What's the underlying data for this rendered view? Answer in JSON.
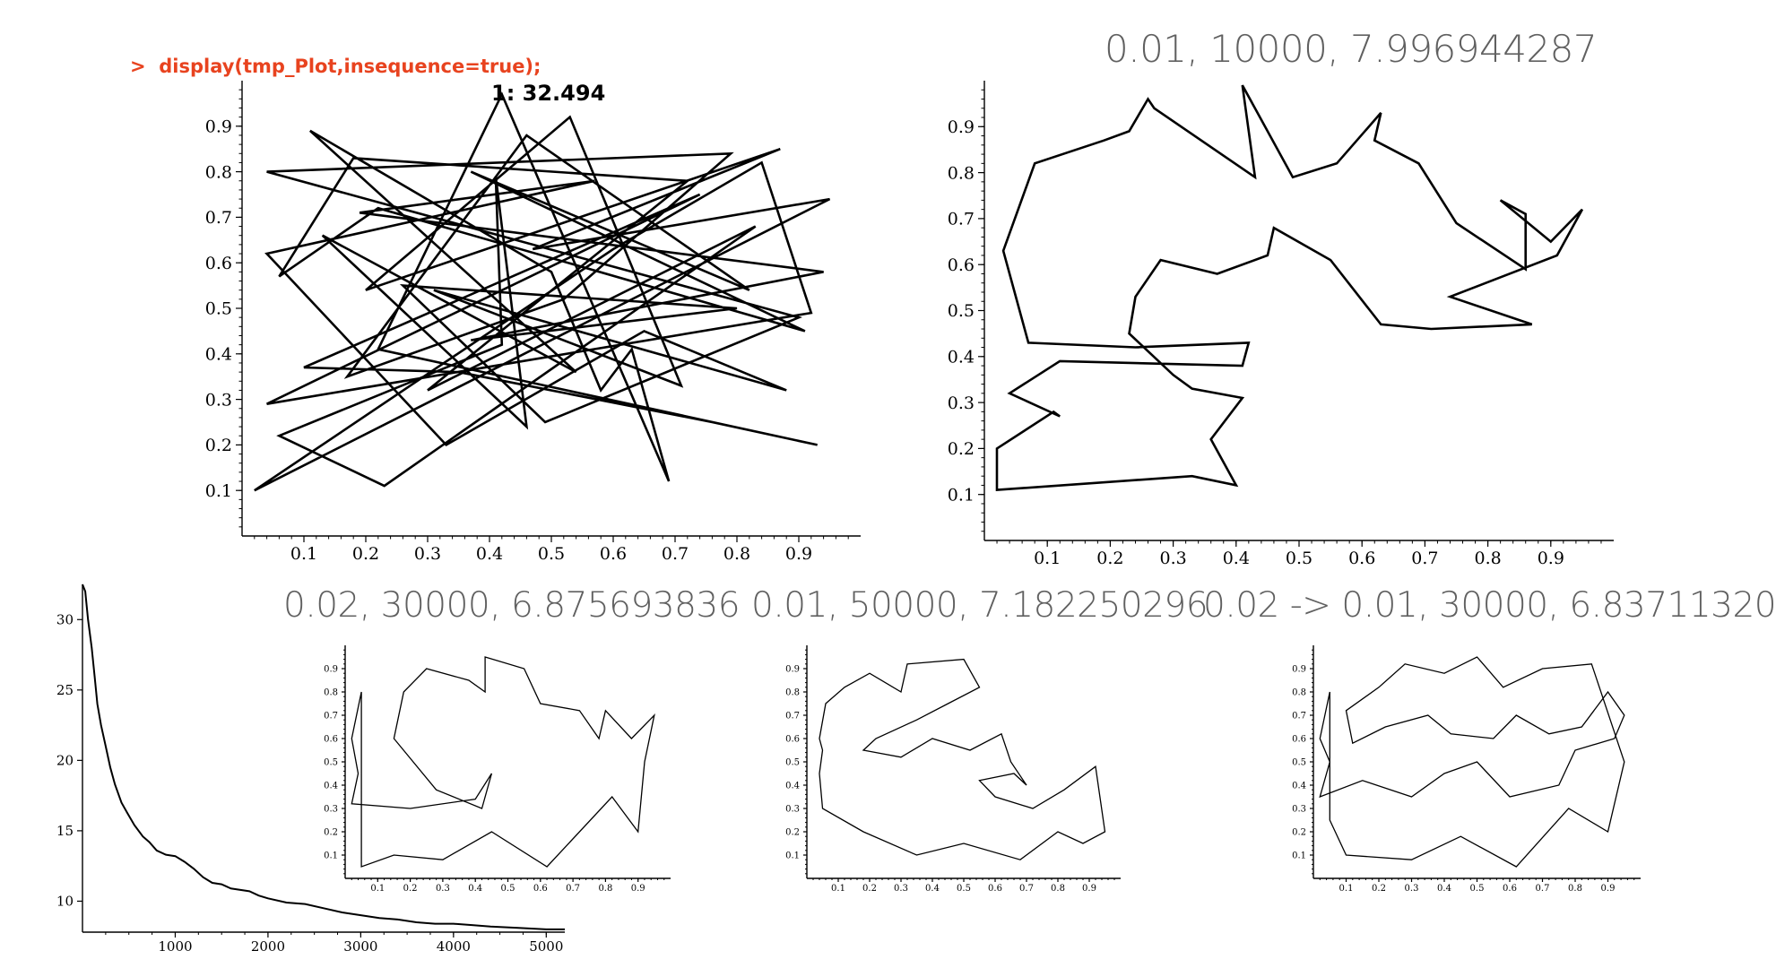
{
  "command_prompt": ">",
  "command_text": "display(tmp_Plot,insequence=true);",
  "colors": {
    "command": "#e8431f",
    "caption": "#606060",
    "line": "#000000"
  },
  "captions": {
    "main": "0.01, 10000, 7.996944287",
    "small1": "0.02, 30000, 6.875693836",
    "small2": "0.01, 50000, 7.182250296",
    "small3": "0.02 -> 0.01, 30000, 6.83711320"
  },
  "chart_data": [
    {
      "id": "random-tour",
      "type": "line",
      "title": "1: 32.494",
      "xlim": [
        0,
        1
      ],
      "ylim": [
        0,
        1
      ],
      "xticks": [
        0.1,
        0.2,
        0.3,
        0.4,
        0.5,
        0.6,
        0.7,
        0.8,
        0.9
      ],
      "yticks": [
        0.1,
        0.2,
        0.3,
        0.4,
        0.5,
        0.6,
        0.7,
        0.8,
        0.9
      ],
      "points": [
        [
          0.04,
          0.8
        ],
        [
          0.79,
          0.84
        ],
        [
          0.52,
          0.52
        ],
        [
          0.17,
          0.35
        ],
        [
          0.46,
          0.88
        ],
        [
          0.82,
          0.54
        ],
        [
          0.37,
          0.8
        ],
        [
          0.91,
          0.45
        ],
        [
          0.22,
          0.72
        ],
        [
          0.06,
          0.57
        ],
        [
          0.18,
          0.83
        ],
        [
          0.72,
          0.78
        ],
        [
          0.3,
          0.32
        ],
        [
          0.83,
          0.68
        ],
        [
          0.23,
          0.11
        ],
        [
          0.06,
          0.22
        ],
        [
          0.42,
          0.42
        ],
        [
          0.41,
          0.79
        ],
        [
          0.46,
          0.24
        ],
        [
          0.13,
          0.66
        ],
        [
          0.54,
          0.36
        ],
        [
          0.11,
          0.89
        ],
        [
          0.5,
          0.58
        ],
        [
          0.58,
          0.32
        ],
        [
          0.63,
          0.41
        ],
        [
          0.69,
          0.12
        ],
        [
          0.42,
          0.97
        ],
        [
          0.22,
          0.41
        ],
        [
          0.93,
          0.2
        ],
        [
          0.76,
          0.25
        ],
        [
          0.35,
          0.36
        ],
        [
          0.1,
          0.37
        ],
        [
          0.74,
          0.75
        ],
        [
          0.04,
          0.29
        ],
        [
          0.92,
          0.49
        ],
        [
          0.84,
          0.82
        ],
        [
          0.6,
          0.63
        ],
        [
          0.02,
          0.1
        ],
        [
          0.95,
          0.74
        ],
        [
          0.47,
          0.63
        ],
        [
          0.87,
          0.85
        ],
        [
          0.2,
          0.54
        ],
        [
          0.53,
          0.92
        ],
        [
          0.71,
          0.33
        ],
        [
          0.31,
          0.54
        ],
        [
          0.88,
          0.32
        ],
        [
          0.65,
          0.45
        ],
        [
          0.33,
          0.2
        ],
        [
          0.04,
          0.62
        ],
        [
          0.57,
          0.78
        ],
        [
          0.19,
          0.71
        ],
        [
          0.94,
          0.58
        ],
        [
          0.37,
          0.43
        ],
        [
          0.8,
          0.5
        ],
        [
          0.26,
          0.55
        ],
        [
          0.49,
          0.25
        ],
        [
          0.9,
          0.48
        ]
      ]
    },
    {
      "id": "annealed-tour",
      "type": "line",
      "title": "",
      "xlim": [
        0,
        1
      ],
      "ylim": [
        0,
        1
      ],
      "xticks": [
        0.1,
        0.2,
        0.3,
        0.4,
        0.5,
        0.6,
        0.7,
        0.8,
        0.9
      ],
      "yticks": [
        0.1,
        0.2,
        0.3,
        0.4,
        0.5,
        0.6,
        0.7,
        0.8,
        0.9
      ],
      "points": [
        [
          0.12,
          0.27
        ],
        [
          0.04,
          0.32
        ],
        [
          0.12,
          0.39
        ],
        [
          0.41,
          0.38
        ],
        [
          0.42,
          0.43
        ],
        [
          0.24,
          0.42
        ],
        [
          0.07,
          0.43
        ],
        [
          0.05,
          0.53
        ],
        [
          0.03,
          0.63
        ],
        [
          0.08,
          0.82
        ],
        [
          0.19,
          0.87
        ],
        [
          0.23,
          0.89
        ],
        [
          0.26,
          0.96
        ],
        [
          0.27,
          0.94
        ],
        [
          0.43,
          0.79
        ],
        [
          0.41,
          0.99
        ],
        [
          0.49,
          0.79
        ],
        [
          0.56,
          0.82
        ],
        [
          0.63,
          0.93
        ],
        [
          0.62,
          0.87
        ],
        [
          0.69,
          0.82
        ],
        [
          0.75,
          0.69
        ],
        [
          0.86,
          0.59
        ],
        [
          0.86,
          0.71
        ],
        [
          0.82,
          0.74
        ],
        [
          0.9,
          0.65
        ],
        [
          0.95,
          0.72
        ],
        [
          0.91,
          0.62
        ],
        [
          0.74,
          0.53
        ],
        [
          0.87,
          0.47
        ],
        [
          0.71,
          0.46
        ],
        [
          0.63,
          0.47
        ],
        [
          0.55,
          0.61
        ],
        [
          0.46,
          0.68
        ],
        [
          0.45,
          0.62
        ],
        [
          0.37,
          0.58
        ],
        [
          0.28,
          0.61
        ],
        [
          0.24,
          0.53
        ],
        [
          0.23,
          0.45
        ],
        [
          0.3,
          0.36
        ],
        [
          0.33,
          0.33
        ],
        [
          0.41,
          0.31
        ],
        [
          0.36,
          0.22
        ],
        [
          0.4,
          0.12
        ],
        [
          0.33,
          0.14
        ],
        [
          0.02,
          0.11
        ],
        [
          0.02,
          0.2
        ],
        [
          0.11,
          0.28
        ]
      ]
    },
    {
      "id": "tour-030000",
      "type": "line",
      "title": "",
      "xlim": [
        0,
        1
      ],
      "ylim": [
        0,
        1
      ],
      "xticks": [
        0.1,
        0.2,
        0.3,
        0.4,
        0.5,
        0.6,
        0.7,
        0.8,
        0.9
      ],
      "yticks": [
        0.1,
        0.2,
        0.3,
        0.4,
        0.5,
        0.6,
        0.7,
        0.8,
        0.9
      ],
      "points": [
        [
          0.05,
          0.8
        ],
        [
          0.02,
          0.6
        ],
        [
          0.04,
          0.45
        ],
        [
          0.02,
          0.32
        ],
        [
          0.2,
          0.3
        ],
        [
          0.4,
          0.34
        ],
        [
          0.45,
          0.45
        ],
        [
          0.42,
          0.3
        ],
        [
          0.28,
          0.38
        ],
        [
          0.15,
          0.6
        ],
        [
          0.18,
          0.8
        ],
        [
          0.25,
          0.9
        ],
        [
          0.38,
          0.85
        ],
        [
          0.43,
          0.8
        ],
        [
          0.43,
          0.95
        ],
        [
          0.55,
          0.9
        ],
        [
          0.6,
          0.75
        ],
        [
          0.72,
          0.72
        ],
        [
          0.78,
          0.6
        ],
        [
          0.8,
          0.72
        ],
        [
          0.88,
          0.6
        ],
        [
          0.95,
          0.7
        ],
        [
          0.92,
          0.5
        ],
        [
          0.9,
          0.2
        ],
        [
          0.82,
          0.35
        ],
        [
          0.62,
          0.05
        ],
        [
          0.45,
          0.2
        ],
        [
          0.3,
          0.08
        ],
        [
          0.15,
          0.1
        ],
        [
          0.05,
          0.05
        ]
      ]
    },
    {
      "id": "tour-050000",
      "type": "line",
      "title": "",
      "xlim": [
        0,
        1
      ],
      "ylim": [
        0,
        1
      ],
      "xticks": [
        0.1,
        0.2,
        0.3,
        0.4,
        0.5,
        0.6,
        0.7,
        0.8,
        0.9
      ],
      "yticks": [
        0.1,
        0.2,
        0.3,
        0.4,
        0.5,
        0.6,
        0.7,
        0.8,
        0.9
      ],
      "points": [
        [
          0.05,
          0.55
        ],
        [
          0.04,
          0.6
        ],
        [
          0.06,
          0.75
        ],
        [
          0.12,
          0.82
        ],
        [
          0.2,
          0.88
        ],
        [
          0.3,
          0.8
        ],
        [
          0.32,
          0.92
        ],
        [
          0.5,
          0.94
        ],
        [
          0.55,
          0.82
        ],
        [
          0.45,
          0.75
        ],
        [
          0.35,
          0.68
        ],
        [
          0.22,
          0.6
        ],
        [
          0.18,
          0.55
        ],
        [
          0.3,
          0.52
        ],
        [
          0.4,
          0.6
        ],
        [
          0.52,
          0.55
        ],
        [
          0.62,
          0.62
        ],
        [
          0.65,
          0.5
        ],
        [
          0.7,
          0.4
        ],
        [
          0.66,
          0.45
        ],
        [
          0.55,
          0.42
        ],
        [
          0.6,
          0.35
        ],
        [
          0.72,
          0.3
        ],
        [
          0.82,
          0.38
        ],
        [
          0.92,
          0.48
        ],
        [
          0.95,
          0.2
        ],
        [
          0.88,
          0.15
        ],
        [
          0.8,
          0.2
        ],
        [
          0.68,
          0.08
        ],
        [
          0.5,
          0.15
        ],
        [
          0.35,
          0.1
        ],
        [
          0.18,
          0.2
        ],
        [
          0.05,
          0.3
        ],
        [
          0.04,
          0.45
        ]
      ]
    },
    {
      "id": "tour-schedule",
      "type": "line",
      "title": "",
      "xlim": [
        0,
        1
      ],
      "ylim": [
        0,
        1
      ],
      "xticks": [
        0.1,
        0.2,
        0.3,
        0.4,
        0.5,
        0.6,
        0.7,
        0.8,
        0.9
      ],
      "yticks": [
        0.1,
        0.2,
        0.3,
        0.4,
        0.5,
        0.6,
        0.7,
        0.8,
        0.9
      ],
      "points": [
        [
          0.05,
          0.8
        ],
        [
          0.02,
          0.6
        ],
        [
          0.05,
          0.5
        ],
        [
          0.02,
          0.35
        ],
        [
          0.15,
          0.42
        ],
        [
          0.3,
          0.35
        ],
        [
          0.4,
          0.45
        ],
        [
          0.5,
          0.5
        ],
        [
          0.6,
          0.35
        ],
        [
          0.75,
          0.4
        ],
        [
          0.8,
          0.55
        ],
        [
          0.92,
          0.6
        ],
        [
          0.95,
          0.7
        ],
        [
          0.9,
          0.8
        ],
        [
          0.82,
          0.65
        ],
        [
          0.72,
          0.62
        ],
        [
          0.62,
          0.7
        ],
        [
          0.55,
          0.6
        ],
        [
          0.42,
          0.62
        ],
        [
          0.35,
          0.7
        ],
        [
          0.22,
          0.65
        ],
        [
          0.12,
          0.58
        ],
        [
          0.1,
          0.72
        ],
        [
          0.2,
          0.82
        ],
        [
          0.28,
          0.92
        ],
        [
          0.4,
          0.88
        ],
        [
          0.5,
          0.95
        ],
        [
          0.58,
          0.82
        ],
        [
          0.7,
          0.9
        ],
        [
          0.85,
          0.92
        ],
        [
          0.95,
          0.5
        ],
        [
          0.9,
          0.2
        ],
        [
          0.78,
          0.3
        ],
        [
          0.62,
          0.05
        ],
        [
          0.45,
          0.18
        ],
        [
          0.3,
          0.08
        ],
        [
          0.1,
          0.1
        ],
        [
          0.05,
          0.25
        ]
      ]
    },
    {
      "id": "tour-length-history",
      "type": "line",
      "title": "",
      "xlim": [
        0,
        5200
      ],
      "ylim": [
        7.8,
        32.5
      ],
      "xticks": [
        1000,
        2000,
        3000,
        4000,
        5000
      ],
      "yticks": [
        10,
        15,
        20,
        25,
        30
      ],
      "points": [
        [
          0,
          32.5
        ],
        [
          30,
          32
        ],
        [
          60,
          30
        ],
        [
          100,
          28
        ],
        [
          130,
          26
        ],
        [
          160,
          24
        ],
        [
          200,
          22.5
        ],
        [
          250,
          21
        ],
        [
          300,
          19.5
        ],
        [
          350,
          18.3
        ],
        [
          420,
          17
        ],
        [
          480,
          16.3
        ],
        [
          560,
          15.4
        ],
        [
          650,
          14.6
        ],
        [
          720,
          14.2
        ],
        [
          800,
          13.6
        ],
        [
          900,
          13.3
        ],
        [
          1000,
          13.2
        ],
        [
          1100,
          12.8
        ],
        [
          1200,
          12.3
        ],
        [
          1300,
          11.7
        ],
        [
          1400,
          11.3
        ],
        [
          1500,
          11.2
        ],
        [
          1600,
          10.9
        ],
        [
          1800,
          10.7
        ],
        [
          1900,
          10.4
        ],
        [
          2000,
          10.2
        ],
        [
          2200,
          9.9
        ],
        [
          2400,
          9.8
        ],
        [
          2600,
          9.5
        ],
        [
          2800,
          9.2
        ],
        [
          3000,
          9.0
        ],
        [
          3200,
          8.8
        ],
        [
          3400,
          8.7
        ],
        [
          3600,
          8.5
        ],
        [
          3800,
          8.4
        ],
        [
          4000,
          8.4
        ],
        [
          4200,
          8.3
        ],
        [
          4400,
          8.2
        ],
        [
          4700,
          8.1
        ],
        [
          5000,
          8.0
        ],
        [
          5200,
          8.0
        ]
      ]
    }
  ]
}
